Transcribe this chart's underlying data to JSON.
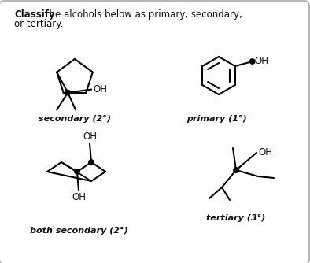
{
  "title_bold": "Classify",
  "title_rest": " the alcohols below as primary, secondary,",
  "title_line2": "or tertiary.",
  "label_secondary": "secondary (2°)",
  "label_primary": "primary (1°)",
  "label_both_secondary": "both secondary (2°)",
  "label_tertiary": "tertiary (3°)",
  "bg_color": "#ffffff",
  "border_color": "#aaaaaa",
  "line_color": "#000000",
  "dot_color": "#000000",
  "text_color": "#111111",
  "font_size_label": 8.0,
  "font_size_title": 8.5,
  "font_size_oh": 8.5,
  "lw": 1.5
}
